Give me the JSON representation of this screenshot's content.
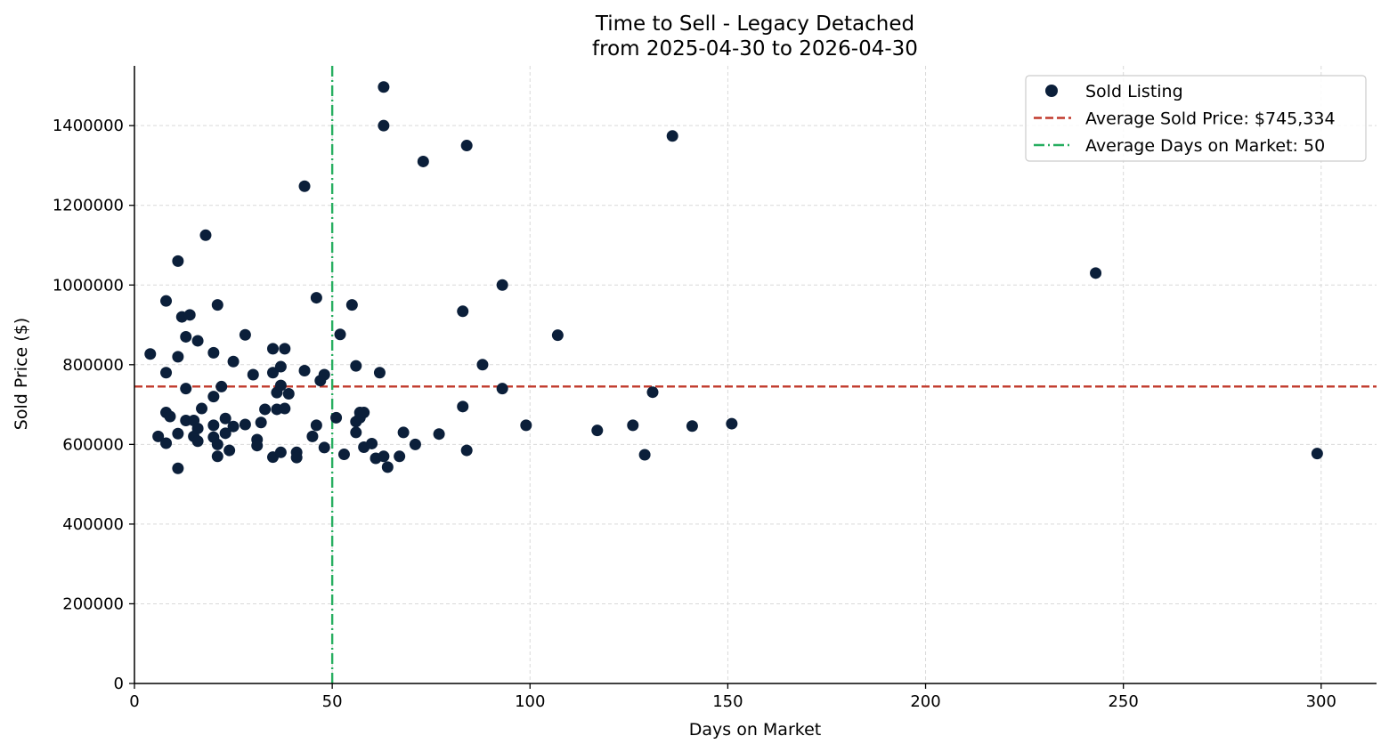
{
  "chart_data": {
    "type": "scatter",
    "title": "Time to Sell - Legacy Detached",
    "subtitle": "from 2025-04-30 to 2026-04-30",
    "xlabel": "Days on Market",
    "ylabel": "Sold Price ($)",
    "xlim": [
      0,
      314
    ],
    "ylim": [
      0,
      1550000
    ],
    "xticks": [
      0,
      50,
      100,
      150,
      200,
      250,
      300
    ],
    "yticks": [
      0,
      200000,
      400000,
      600000,
      800000,
      1000000,
      1200000,
      1400000
    ],
    "grid": true,
    "legend_position": "top-right",
    "colors": {
      "points": "#0b1f3a",
      "avg_price_line": "#c0392b",
      "avg_days_line": "#27ae60"
    },
    "legend": [
      {
        "label": "Sold Listing",
        "kind": "marker"
      },
      {
        "label": "Average Sold Price: $745,334",
        "kind": "dashed"
      },
      {
        "label": "Average Days on Market: 50",
        "kind": "dashdot"
      }
    ],
    "reference_lines": {
      "avg_sold_price": 745334,
      "avg_days_on_market": 50
    },
    "series": [
      {
        "name": "Sold Listing",
        "points": [
          [
            4,
            827000
          ],
          [
            6,
            620000
          ],
          [
            8,
            780000
          ],
          [
            8,
            960000
          ],
          [
            8,
            680000
          ],
          [
            8,
            603000
          ],
          [
            9,
            670000
          ],
          [
            11,
            1060000
          ],
          [
            11,
            820000
          ],
          [
            11,
            627000
          ],
          [
            11,
            540000
          ],
          [
            12,
            920000
          ],
          [
            13,
            870000
          ],
          [
            13,
            740000
          ],
          [
            13,
            660000
          ],
          [
            14,
            925000
          ],
          [
            15,
            660000
          ],
          [
            15,
            620000
          ],
          [
            16,
            860000
          ],
          [
            16,
            640000
          ],
          [
            16,
            608000
          ],
          [
            17,
            690000
          ],
          [
            18,
            1125000
          ],
          [
            20,
            830000
          ],
          [
            20,
            720000
          ],
          [
            20,
            648000
          ],
          [
            20,
            618000
          ],
          [
            21,
            950000
          ],
          [
            21,
            600000
          ],
          [
            21,
            570000
          ],
          [
            22,
            745000
          ],
          [
            23,
            665000
          ],
          [
            23,
            628000
          ],
          [
            24,
            585000
          ],
          [
            25,
            808000
          ],
          [
            25,
            645000
          ],
          [
            28,
            875000
          ],
          [
            28,
            650000
          ],
          [
            30,
            775000
          ],
          [
            31,
            612000
          ],
          [
            31,
            597000
          ],
          [
            32,
            655000
          ],
          [
            33,
            688000
          ],
          [
            35,
            840000
          ],
          [
            35,
            780000
          ],
          [
            35,
            568000
          ],
          [
            36,
            730000
          ],
          [
            36,
            688000
          ],
          [
            37,
            795000
          ],
          [
            37,
            748000
          ],
          [
            37,
            580000
          ],
          [
            38,
            840000
          ],
          [
            38,
            690000
          ],
          [
            39,
            727000
          ],
          [
            41,
            580000
          ],
          [
            41,
            567000
          ],
          [
            43,
            1248000
          ],
          [
            43,
            785000
          ],
          [
            45,
            620000
          ],
          [
            46,
            968000
          ],
          [
            46,
            648000
          ],
          [
            47,
            760000
          ],
          [
            48,
            775000
          ],
          [
            48,
            592000
          ],
          [
            51,
            667000
          ],
          [
            52,
            876000
          ],
          [
            53,
            575000
          ],
          [
            55,
            950000
          ],
          [
            56,
            797000
          ],
          [
            56,
            657000
          ],
          [
            56,
            630000
          ],
          [
            57,
            680000
          ],
          [
            57,
            667000
          ],
          [
            58,
            680000
          ],
          [
            58,
            593000
          ],
          [
            60,
            602000
          ],
          [
            61,
            565000
          ],
          [
            62,
            780000
          ],
          [
            63,
            1497000
          ],
          [
            63,
            1400000
          ],
          [
            63,
            570000
          ],
          [
            64,
            543000
          ],
          [
            67,
            570000
          ],
          [
            68,
            630000
          ],
          [
            71,
            600000
          ],
          [
            73,
            1310000
          ],
          [
            77,
            626000
          ],
          [
            83,
            934000
          ],
          [
            83,
            695000
          ],
          [
            84,
            1350000
          ],
          [
            84,
            585000
          ],
          [
            88,
            800000
          ],
          [
            93,
            1000000
          ],
          [
            93,
            740000
          ],
          [
            99,
            648000
          ],
          [
            107,
            874000
          ],
          [
            117,
            635000
          ],
          [
            126,
            648000
          ],
          [
            129,
            574000
          ],
          [
            131,
            731000
          ],
          [
            136,
            1374000
          ],
          [
            141,
            646000
          ],
          [
            151,
            652000
          ],
          [
            243,
            1030000
          ],
          [
            299,
            577000
          ]
        ]
      }
    ]
  }
}
